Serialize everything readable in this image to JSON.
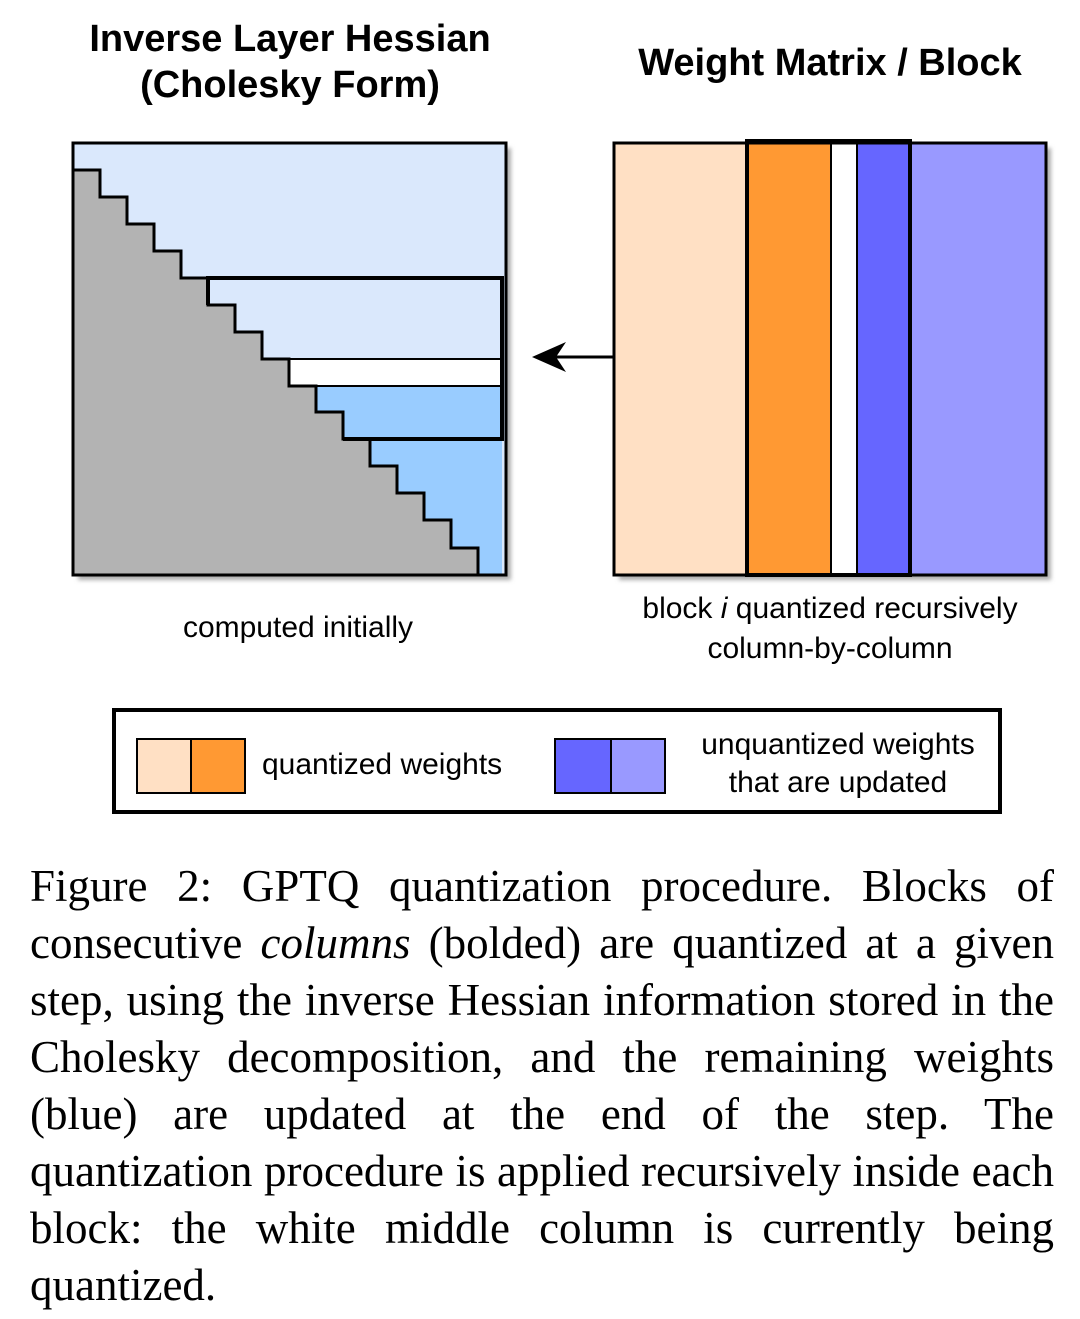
{
  "left_panel": {
    "title_line1": "Inverse Layer Hessian",
    "title_line2": "(Cholesky Form)",
    "label": "computed initially",
    "colors": {
      "gray": "#b3b3b3",
      "light_blue": "#dae8fc",
      "blue": "#99ccff",
      "white": "#ffffff"
    }
  },
  "right_panel": {
    "title": "Weight Matrix / Block",
    "label_part1": "block ",
    "label_italic": "i",
    "label_part2": " quantized recursively",
    "label_line2": "column-by-column",
    "colors": {
      "quantized_light": "#ffe0c4",
      "quantized_orange": "#ff9933",
      "current_white": "#ffffff",
      "updated_blue": "#6666ff",
      "unquantized_blue": "#9999ff"
    }
  },
  "arrow": {
    "icon": "double-headed-arrow-icon"
  },
  "legend": {
    "quantized_label": "quantized weights",
    "unquantized_line1": "unquantized weights",
    "unquantized_line2": "that are updated"
  },
  "caption": {
    "part1": "Figure 2: GPTQ quantization procedure. Blocks of consecutive ",
    "italic": "columns",
    "part2": " (bolded) are quantized at a given step, using the inverse Hessian informa­tion stored in the Cholesky decomposition, and the remaining weights (blue) are updated at the end of the step.  The quantization procedure is applied recursively inside each block: the white middle column is currently being quantized."
  }
}
